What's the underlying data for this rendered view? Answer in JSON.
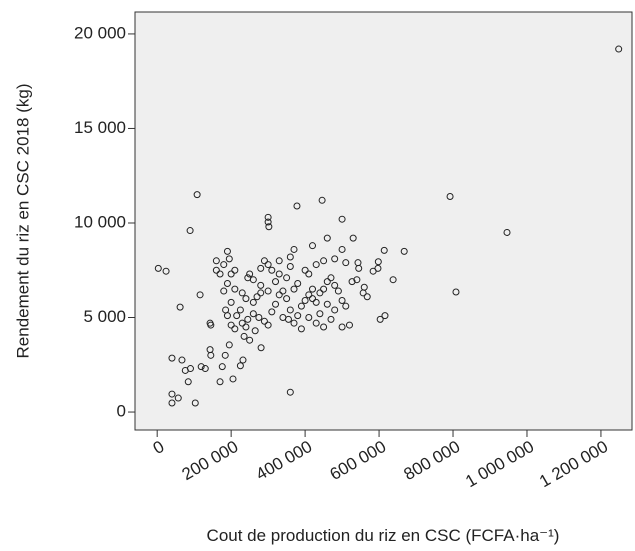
{
  "chart_data": {
    "type": "scatter",
    "x_label": "Cout de production du riz en CSC (FCFA·ha⁻¹)",
    "y_label": "Rendement du riz en CSC 2018 (kg)",
    "xlim": [
      -60000,
      1284000
    ],
    "ylim": [
      -950,
      21160
    ],
    "xticks": [
      0,
      {
        "value": 200000,
        "label": "200 000"
      },
      {
        "value": 400000,
        "label": "400 000"
      },
      {
        "value": 600000,
        "label": "600 000"
      },
      {
        "value": 800000,
        "label": "800 000"
      },
      {
        "value": 1000000,
        "label": "1 000 000"
      },
      {
        "value": 1200000,
        "label": "1 200 000"
      }
    ],
    "yticks": [
      0,
      {
        "value": 5000,
        "label": "5 000"
      },
      {
        "value": 10000,
        "label": "10 000"
      },
      {
        "value": 15000,
        "label": "15 000"
      },
      {
        "value": 20000,
        "label": "20 000"
      }
    ],
    "color": "#222222",
    "x": [
      1248000,
      946000,
      792000,
      808000,
      108000,
      446000,
      378000,
      300000,
      300000,
      302000,
      89000,
      3000,
      24000,
      62000,
      116000,
      143000,
      145000,
      40000,
      67000,
      76000,
      90000,
      84000,
      40000,
      40000,
      57000,
      103000,
      360000,
      119000,
      130000,
      143000,
      145000,
      170000,
      205000,
      176000,
      232000,
      225000,
      184000,
      195000,
      281000,
      235000,
      614000,
      668000,
      638000,
      616000,
      603000,
      597000,
      598000,
      584000,
      568000,
      557000,
      543000,
      545000,
      527000,
      530000,
      500000,
      460000,
      420000,
      370000,
      360000,
      330000,
      290000,
      300000,
      280000,
      250000,
      245000,
      260000,
      230000,
      210000,
      200000,
      180000,
      160000,
      190000,
      195000,
      210000,
      170000,
      190000,
      180000,
      200000,
      185000,
      190000,
      200000,
      210000,
      230000,
      240000,
      245000,
      260000,
      275000,
      290000,
      300000,
      310000,
      320000,
      330000,
      340000,
      350000,
      360000,
      355000,
      370000,
      380000,
      390000,
      400000,
      410000,
      420000,
      430000,
      440000,
      450000,
      460000,
      470000,
      480000,
      490000,
      500000,
      510000,
      520000,
      500000,
      470000,
      450000,
      430000,
      410000,
      390000,
      400000,
      410000,
      430000,
      450000,
      480000,
      500000,
      510000,
      380000,
      370000,
      350000,
      330000,
      310000,
      320000,
      300000,
      280000,
      270000,
      260000,
      240000,
      225000,
      215000,
      440000,
      460000,
      480000,
      340000,
      250000,
      265000,
      540000,
      420000,
      360000,
      280000,
      160000,
      560000
    ],
    "values": [
      19200,
      9500,
      11400,
      6350,
      11500,
      11200,
      10900,
      10300,
      10050,
      9800,
      9600,
      7600,
      7450,
      5550,
      6200,
      4700,
      4600,
      2850,
      2750,
      2200,
      2300,
      1600,
      950,
      480,
      740,
      480,
      1050,
      2400,
      2300,
      3300,
      3000,
      1600,
      1750,
      2400,
      2750,
      2450,
      3000,
      3550,
      3400,
      4000,
      8550,
      8500,
      7000,
      5100,
      4900,
      7600,
      7950,
      7450,
      6100,
      6300,
      7900,
      7600,
      6900,
      9200,
      10200,
      9200,
      8800,
      8600,
      8200,
      8000,
      8000,
      7800,
      7600,
      7300,
      7100,
      7000,
      6300,
      6500,
      7300,
      7800,
      8000,
      8500,
      8100,
      7500,
      7300,
      6800,
      6400,
      5800,
      5400,
      5100,
      4600,
      4400,
      4700,
      4500,
      4900,
      5200,
      5000,
      4800,
      4600,
      5300,
      5700,
      6200,
      6400,
      6000,
      5400,
      4900,
      4700,
      5100,
      5600,
      5900,
      6200,
      6000,
      5800,
      6300,
      6500,
      6900,
      7100,
      6700,
      6400,
      5900,
      5600,
      4600,
      4500,
      4900,
      4500,
      4700,
      5000,
      4400,
      7500,
      7300,
      7800,
      8000,
      8100,
      8600,
      7900,
      6800,
      6500,
      7100,
      7300,
      7500,
      6900,
      6400,
      6300,
      6100,
      5800,
      6000,
      5400,
      5100,
      5200,
      5700,
      5400,
      5000,
      3800,
      4300,
      7000,
      6500,
      7700,
      6700,
      7500,
      6600
    ]
  }
}
